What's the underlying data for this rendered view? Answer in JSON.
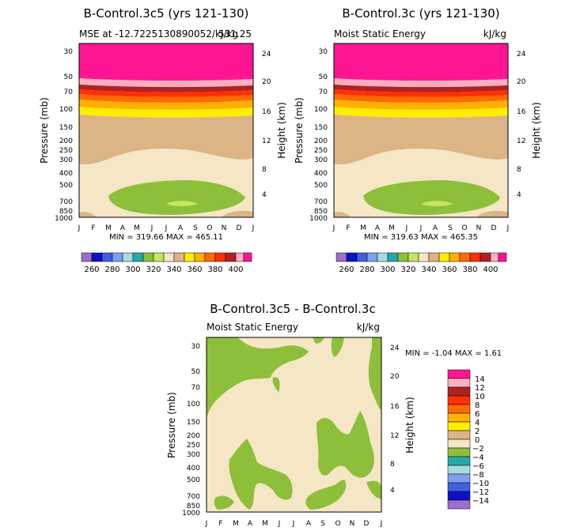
{
  "figure": {
    "panel1": {
      "title": "B-Control.3c5 (yrs 121-130)",
      "left": "MSE at -12.7225130890052/kJ/kg",
      "right": "531.25",
      "minmax": "MIN = 319.66 MAX = 465.11"
    },
    "panel2": {
      "title": "B-Control.3c (yrs 121-130)",
      "left": "Moist Static Energy",
      "right": "kJ/kg",
      "minmax": "MIN = 319.63 MAX = 465.35"
    },
    "panel3": {
      "title": "B-Control.3c5 - B-Control.3c",
      "left": "Moist Static Energy",
      "right": "kJ/kg",
      "minmax": "MIN = -1.04 MAX = 1.61"
    },
    "ylabel_left": "Pressure (mb)",
    "ylabel_right": "Height (km)"
  },
  "chart_data": [
    {
      "type": "heatmap",
      "title": "B-Control.3c5 (yrs 121-130)",
      "subtitle_left": "MSE at -12.7225130890052/kJ/kg",
      "subtitle_right": "531.25",
      "x": [
        "J",
        "F",
        "M",
        "A",
        "M",
        "J",
        "J",
        "A",
        "S",
        "O",
        "N",
        "D",
        "J"
      ],
      "y_pressure_ticks": [
        30,
        50,
        70,
        100,
        150,
        200,
        250,
        300,
        400,
        500,
        700,
        850,
        1000
      ],
      "y_height_ticks": [
        24,
        20,
        16,
        12,
        8,
        4
      ],
      "ylabel_left": "Pressure (mb)",
      "ylabel_right": "Height (km)",
      "colorbar_levels": [
        260,
        270,
        280,
        290,
        300,
        310,
        320,
        330,
        340,
        350,
        360,
        370,
        380,
        390,
        400
      ],
      "colorbar_labels": [
        260,
        280,
        300,
        320,
        340,
        360,
        380,
        400
      ],
      "colorbar_colors": [
        "#9b6fc9",
        "#1010c8",
        "#3f5fe0",
        "#7d9ff0",
        "#a8dadf",
        "#22aaaa",
        "#8ebf3a",
        "#c6e55e",
        "#f5e6c5",
        "#dcb486",
        "#ffee00",
        "#ffb000",
        "#ff6a00",
        "#ff3000",
        "#b02222",
        "#ffaec0",
        "#ff1493"
      ],
      "min": 319.66,
      "max": 465.11
    },
    {
      "type": "heatmap",
      "title": "B-Control.3c (yrs 121-130)",
      "subtitle_left": "Moist Static Energy",
      "subtitle_right": "kJ/kg",
      "x": [
        "J",
        "F",
        "M",
        "A",
        "M",
        "J",
        "J",
        "A",
        "S",
        "O",
        "N",
        "D",
        "J"
      ],
      "y_pressure_ticks": [
        30,
        50,
        70,
        100,
        150,
        200,
        250,
        300,
        400,
        500,
        700,
        850,
        1000
      ],
      "y_height_ticks": [
        24,
        20,
        16,
        12,
        8,
        4
      ],
      "ylabel_left": "Pressure (mb)",
      "ylabel_right": "Height (km)",
      "colorbar_labels": [
        260,
        280,
        300,
        320,
        340,
        360,
        380,
        400
      ],
      "min": 319.63,
      "max": 465.35
    },
    {
      "type": "heatmap",
      "title": "B-Control.3c5 - B-Control.3c",
      "subtitle_left": "Moist Static Energy",
      "subtitle_right": "kJ/kg",
      "x": [
        "J",
        "F",
        "M",
        "A",
        "M",
        "J",
        "J",
        "A",
        "S",
        "O",
        "N",
        "D",
        "J"
      ],
      "y_pressure_ticks": [
        30,
        50,
        70,
        100,
        150,
        200,
        250,
        300,
        400,
        500,
        700,
        850,
        1000
      ],
      "y_height_ticks": [
        24,
        20,
        16,
        12,
        8,
        4
      ],
      "ylabel_left": "Pressure (mb)",
      "ylabel_right": "Height (km)",
      "colorbar_labels": [
        14,
        12,
        10,
        8,
        6,
        4,
        2,
        0,
        -2,
        -4,
        -6,
        -8,
        -10,
        -12,
        -14
      ],
      "colorbar_colors": [
        "#ff1493",
        "#ffaec0",
        "#b02222",
        "#ff3000",
        "#ff6a00",
        "#ffb000",
        "#ffee00",
        "#dcb486",
        "#f5e6c5",
        "#8ebf3a",
        "#22aaaa",
        "#a8dadf",
        "#7d9ff0",
        "#3f5fe0",
        "#1010c8",
        "#9b6fc9"
      ],
      "min": -1.04,
      "max": 1.61
    }
  ]
}
